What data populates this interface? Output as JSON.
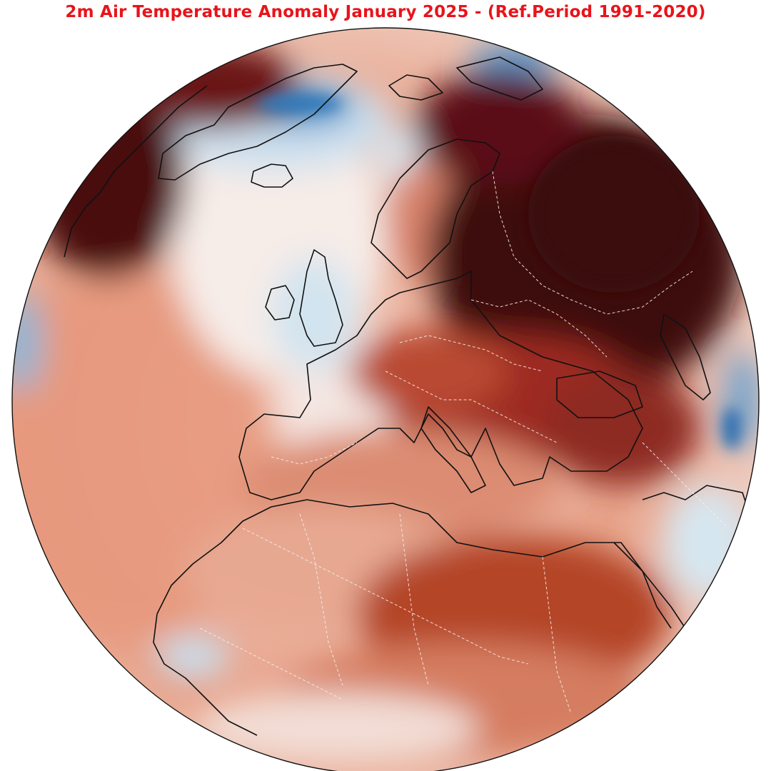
{
  "title": "2m Air Temperature Anomaly January 2025 - (Ref.Period 1991-2020)",
  "colors": {
    "title": "#e8141b",
    "strong_warm": "#3e0a0d",
    "warm": "#b23a26",
    "mild_warm": "#e39478",
    "neutral": "#f4e6e0",
    "cool": "#d7e7f0",
    "strong_cool": "#2f78b8",
    "coastline": "#111111",
    "borders": "#f5eeea"
  },
  "map": {
    "projection": "orthographic",
    "colormap": "RdBu_r (diverging, blue = colder, red = warmer)"
  }
}
